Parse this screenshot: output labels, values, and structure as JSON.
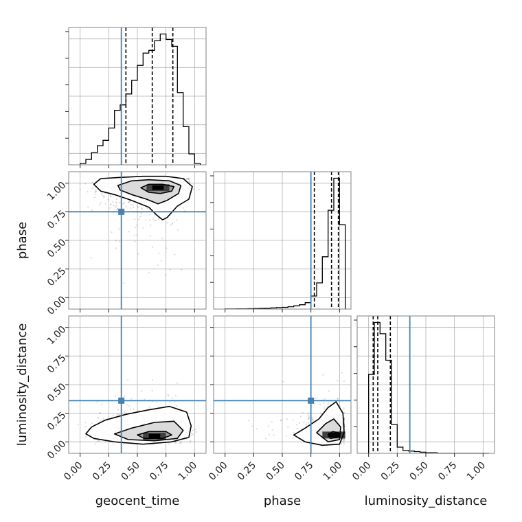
{
  "chart_data": {
    "type": "corner",
    "parameters": [
      "geocent_time",
      "phase",
      "luminosity_distance"
    ],
    "ticks": [
      "0.00",
      "0.25",
      "0.50",
      "0.75",
      "1.00"
    ],
    "range": [
      -0.1,
      1.1
    ],
    "grid": true,
    "truth": {
      "geocent_time": 0.36,
      "phase": 0.75,
      "luminosity_distance": 0.36
    },
    "truth_color": "#4682b4",
    "histograms": [
      {
        "parameter": "geocent_time",
        "bin_edges": [
          0.0,
          0.05,
          0.1,
          0.15,
          0.2,
          0.25,
          0.3,
          0.35,
          0.4,
          0.45,
          0.5,
          0.55,
          0.6,
          0.65,
          0.7,
          0.75,
          0.8,
          0.85,
          0.9,
          0.95,
          1.0,
          1.05
        ],
        "counts": [
          1,
          4,
          9,
          14,
          18,
          27,
          40,
          44,
          52,
          62,
          73,
          82,
          84,
          91,
          96,
          92,
          87,
          53,
          28,
          8,
          1
        ],
        "quantiles": [
          0.4,
          0.63,
          0.81
        ]
      },
      {
        "parameter": "phase",
        "bin_edges": [
          0.0,
          0.05,
          0.1,
          0.15,
          0.2,
          0.25,
          0.3,
          0.35,
          0.4,
          0.45,
          0.5,
          0.55,
          0.6,
          0.65,
          0.7,
          0.75,
          0.8,
          0.85,
          0.9,
          0.95,
          1.0,
          1.05
        ],
        "counts": [
          0.5,
          0.5,
          1,
          1,
          1.5,
          2,
          2.5,
          3,
          4,
          5,
          6,
          8,
          11,
          15,
          22,
          45,
          90,
          180,
          340,
          450,
          290
        ],
        "quantiles": [
          0.78,
          0.93,
          0.99
        ]
      },
      {
        "parameter": "luminosity_distance",
        "bin_edges": [
          0.0,
          0.05,
          0.1,
          0.15,
          0.2,
          0.25,
          0.3,
          0.35,
          0.4,
          0.45,
          0.5,
          0.55,
          0.6,
          0.65,
          0.7,
          0.75,
          0.8,
          0.85,
          0.9,
          0.95,
          1.0,
          1.05
        ],
        "counts": [
          140,
          232,
          212,
          165,
          51,
          11,
          5,
          4,
          3,
          2,
          1,
          1,
          0,
          0,
          0,
          0,
          0,
          0,
          0,
          0,
          0
        ],
        "quantiles": [
          0.04,
          0.08,
          0.19
        ]
      }
    ],
    "scatter_panels": [
      {
        "x": "geocent_time",
        "y": "phase",
        "contours": [
          [
            [
              0.12,
              0.99
            ],
            [
              0.18,
              1.04
            ],
            [
              0.35,
              1.05
            ],
            [
              0.55,
              1.06
            ],
            [
              0.75,
              1.06
            ],
            [
              0.9,
              1.04
            ],
            [
              0.98,
              0.97
            ],
            [
              0.95,
              0.86
            ],
            [
              0.85,
              0.8
            ],
            [
              0.76,
              0.7
            ],
            [
              0.72,
              0.68
            ],
            [
              0.67,
              0.72
            ],
            [
              0.6,
              0.79
            ],
            [
              0.45,
              0.85
            ],
            [
              0.3,
              0.9
            ],
            [
              0.18,
              0.93
            ],
            [
              0.12,
              0.99
            ]
          ],
          [
            [
              0.33,
              0.98
            ],
            [
              0.45,
              1.02
            ],
            [
              0.6,
              1.03
            ],
            [
              0.78,
              1.02
            ],
            [
              0.88,
              0.98
            ],
            [
              0.86,
              0.91
            ],
            [
              0.76,
              0.85
            ],
            [
              0.68,
              0.82
            ],
            [
              0.58,
              0.86
            ],
            [
              0.45,
              0.9
            ],
            [
              0.35,
              0.94
            ],
            [
              0.33,
              0.98
            ]
          ],
          [
            [
              0.53,
              0.96
            ],
            [
              0.6,
              0.99
            ],
            [
              0.72,
              0.99
            ],
            [
              0.82,
              0.97
            ],
            [
              0.8,
              0.93
            ],
            [
              0.7,
              0.91
            ],
            [
              0.6,
              0.92
            ],
            [
              0.53,
              0.96
            ]
          ]
        ],
        "peak": [
          0.68,
          0.96
        ]
      },
      {
        "x": "geocent_time",
        "y": "luminosity_distance",
        "contours": [
          [
            [
              0.05,
              0.07
            ],
            [
              0.1,
              0.13
            ],
            [
              0.22,
              0.19
            ],
            [
              0.4,
              0.24
            ],
            [
              0.6,
              0.28
            ],
            [
              0.78,
              0.31
            ],
            [
              0.93,
              0.26
            ],
            [
              0.97,
              0.14
            ],
            [
              0.95,
              0.04
            ],
            [
              0.8,
              0.0
            ],
            [
              0.55,
              -0.02
            ],
            [
              0.3,
              0.0
            ],
            [
              0.12,
              0.03
            ],
            [
              0.05,
              0.07
            ]
          ],
          [
            [
              0.3,
              0.07
            ],
            [
              0.45,
              0.12
            ],
            [
              0.65,
              0.17
            ],
            [
              0.82,
              0.18
            ],
            [
              0.9,
              0.1
            ],
            [
              0.85,
              0.03
            ],
            [
              0.65,
              0.01
            ],
            [
              0.42,
              0.02
            ],
            [
              0.3,
              0.07
            ]
          ],
          [
            [
              0.5,
              0.06
            ],
            [
              0.6,
              0.09
            ],
            [
              0.75,
              0.09
            ],
            [
              0.8,
              0.06
            ],
            [
              0.72,
              0.03
            ],
            [
              0.56,
              0.03
            ],
            [
              0.5,
              0.06
            ]
          ]
        ],
        "peak": [
          0.65,
          0.05
        ]
      },
      {
        "x": "phase",
        "y": "luminosity_distance",
        "contours": [
          [
            [
              0.6,
              0.06
            ],
            [
              0.7,
              0.12
            ],
            [
              0.82,
              0.2
            ],
            [
              0.9,
              0.3
            ],
            [
              0.97,
              0.35
            ],
            [
              1.03,
              0.25
            ],
            [
              1.04,
              0.08
            ],
            [
              1.0,
              -0.02
            ],
            [
              0.85,
              -0.03
            ],
            [
              0.7,
              0.0
            ],
            [
              0.6,
              0.06
            ]
          ],
          [
            [
              0.8,
              0.08
            ],
            [
              0.88,
              0.16
            ],
            [
              0.95,
              0.2
            ],
            [
              1.01,
              0.13
            ],
            [
              1.0,
              0.02
            ],
            [
              0.9,
              0.0
            ],
            [
              0.8,
              0.08
            ]
          ],
          [
            [
              0.9,
              0.06
            ],
            [
              0.94,
              0.09
            ],
            [
              0.99,
              0.08
            ],
            [
              0.98,
              0.04
            ],
            [
              0.92,
              0.03
            ],
            [
              0.9,
              0.06
            ]
          ]
        ],
        "peak": [
          0.95,
          0.06
        ]
      }
    ]
  }
}
